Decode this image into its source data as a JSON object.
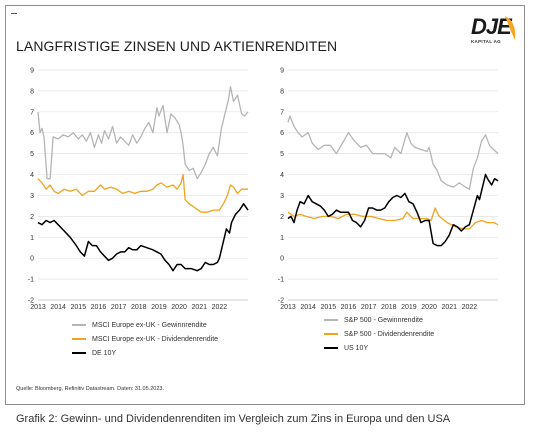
{
  "title": "LANGFRISTIGE ZINSEN UND AKTIENRENDITEN",
  "logo": {
    "name": "DJE",
    "sub": "KAPITAL AG",
    "accent": "#f5a623"
  },
  "source": "Quelle: Bloomberg, Refinitiv Datastream. Daten: 31.05.2023.",
  "caption": "Grafik 2: Gewinn- und Dividendenrenditen im Vergleich zum Zins in Europa und den USA",
  "colors": {
    "earnings": "#b5b5b5",
    "dividend": "#f0a321",
    "bond": "#000000",
    "grid": "#e3e3e3"
  },
  "chart_data": [
    {
      "type": "line",
      "ylim": [
        -2,
        9
      ],
      "yticks": [
        "-2",
        "-1",
        "0",
        "1",
        "2",
        "3",
        "4",
        "5",
        "6",
        "7",
        "8",
        "9"
      ],
      "xlim": [
        2013,
        2023.42
      ],
      "xticks": [
        "2013",
        "2014",
        "2015",
        "2016",
        "2017",
        "2018",
        "2019",
        "2020",
        "2021",
        "2022"
      ],
      "legend_position": "bottom",
      "series": [
        {
          "name": "MSCI Europe ex-UK - Gewinnrendite",
          "color": "#b5b5b5",
          "x": [
            2013.0,
            2013.1,
            2013.2,
            2013.3,
            2013.45,
            2013.6,
            2013.75,
            2014.0,
            2014.25,
            2014.5,
            2014.75,
            2015.0,
            2015.2,
            2015.4,
            2015.6,
            2015.8,
            2016.0,
            2016.15,
            2016.3,
            2016.5,
            2016.7,
            2016.9,
            2017.1,
            2017.3,
            2017.5,
            2017.7,
            2017.9,
            2018.1,
            2018.3,
            2018.5,
            2018.7,
            2018.9,
            2019.0,
            2019.2,
            2019.4,
            2019.6,
            2019.8,
            2020.0,
            2020.1,
            2020.2,
            2020.3,
            2020.5,
            2020.7,
            2020.9,
            2021.1,
            2021.3,
            2021.5,
            2021.7,
            2021.9,
            2022.1,
            2022.3,
            2022.45,
            2022.55,
            2022.7,
            2022.9,
            2023.1,
            2023.25,
            2023.42
          ],
          "y": [
            7.0,
            6.0,
            6.2,
            5.8,
            3.8,
            3.8,
            5.8,
            5.7,
            5.9,
            5.8,
            6.0,
            5.7,
            5.9,
            5.6,
            6.0,
            5.3,
            5.9,
            5.5,
            6.1,
            5.7,
            6.3,
            5.5,
            5.8,
            5.6,
            5.4,
            5.9,
            5.5,
            5.8,
            6.2,
            6.5,
            6.0,
            7.2,
            6.8,
            7.3,
            6.0,
            6.9,
            6.7,
            6.4,
            6.0,
            5.4,
            4.5,
            4.2,
            4.3,
            3.8,
            4.1,
            4.5,
            5.0,
            5.3,
            4.9,
            6.2,
            7.0,
            7.6,
            8.2,
            7.5,
            7.8,
            6.9,
            6.8,
            7.0
          ]
        },
        {
          "name": "MSCI Europe ex-UK - Dividendenrendite",
          "color": "#f0a321",
          "x": [
            2013.0,
            2013.2,
            2013.4,
            2013.6,
            2013.8,
            2014.0,
            2014.3,
            2014.6,
            2014.9,
            2015.2,
            2015.5,
            2015.8,
            2016.1,
            2016.3,
            2016.6,
            2016.9,
            2017.2,
            2017.5,
            2017.8,
            2018.1,
            2018.4,
            2018.7,
            2018.9,
            2019.1,
            2019.4,
            2019.7,
            2019.9,
            2020.1,
            2020.2,
            2020.3,
            2020.5,
            2020.8,
            2021.1,
            2021.4,
            2021.7,
            2022.0,
            2022.2,
            2022.4,
            2022.55,
            2022.7,
            2022.9,
            2023.1,
            2023.42
          ],
          "y": [
            3.8,
            3.6,
            3.3,
            3.5,
            3.2,
            3.1,
            3.3,
            3.2,
            3.3,
            3.0,
            3.2,
            3.2,
            3.5,
            3.3,
            3.4,
            3.3,
            3.1,
            3.2,
            3.1,
            3.2,
            3.2,
            3.3,
            3.5,
            3.6,
            3.4,
            3.5,
            3.3,
            3.6,
            4.0,
            2.8,
            2.6,
            2.4,
            2.2,
            2.2,
            2.3,
            2.3,
            2.6,
            3.0,
            3.5,
            3.4,
            3.1,
            3.3,
            3.3
          ]
        },
        {
          "name": "DE 10Y",
          "color": "#000000",
          "x": [
            2013.0,
            2013.2,
            2013.4,
            2013.6,
            2013.8,
            2014.0,
            2014.3,
            2014.6,
            2014.9,
            2015.1,
            2015.3,
            2015.5,
            2015.7,
            2015.9,
            2016.1,
            2016.3,
            2016.5,
            2016.7,
            2016.9,
            2017.1,
            2017.3,
            2017.5,
            2017.7,
            2017.9,
            2018.1,
            2018.4,
            2018.7,
            2018.9,
            2019.1,
            2019.3,
            2019.5,
            2019.7,
            2019.9,
            2020.1,
            2020.3,
            2020.6,
            2020.9,
            2021.1,
            2021.3,
            2021.5,
            2021.7,
            2021.9,
            2022.0,
            2022.2,
            2022.35,
            2022.5,
            2022.6,
            2022.8,
            2023.0,
            2023.2,
            2023.42
          ],
          "y": [
            1.7,
            1.6,
            1.8,
            1.7,
            1.8,
            1.6,
            1.3,
            1.0,
            0.6,
            0.3,
            0.1,
            0.8,
            0.6,
            0.6,
            0.3,
            0.1,
            -0.1,
            0.0,
            0.2,
            0.3,
            0.3,
            0.5,
            0.4,
            0.4,
            0.6,
            0.5,
            0.4,
            0.3,
            0.2,
            -0.1,
            -0.3,
            -0.6,
            -0.3,
            -0.3,
            -0.5,
            -0.5,
            -0.6,
            -0.5,
            -0.2,
            -0.3,
            -0.3,
            -0.2,
            0.0,
            0.8,
            1.4,
            1.2,
            1.7,
            2.1,
            2.3,
            2.6,
            2.3
          ]
        }
      ]
    },
    {
      "type": "line",
      "ylim": [
        -2,
        9
      ],
      "yticks": [
        "-2",
        "-1",
        "0",
        "1",
        "2",
        "3",
        "4",
        "5",
        "6",
        "7",
        "8",
        "9"
      ],
      "xlim": [
        2013,
        2023.42
      ],
      "xticks": [
        "2013",
        "2014",
        "2015",
        "2016",
        "2017",
        "2018",
        "2019",
        "2020",
        "2021",
        "2022"
      ],
      "legend_position": "bottom",
      "series": [
        {
          "name": "S&P 500 - Gewinnrendite",
          "color": "#b5b5b5",
          "x": [
            2013.0,
            2013.1,
            2013.3,
            2013.5,
            2013.7,
            2014.0,
            2014.2,
            2014.5,
            2014.8,
            2015.1,
            2015.4,
            2015.7,
            2016.0,
            2016.3,
            2016.6,
            2016.9,
            2017.2,
            2017.5,
            2017.8,
            2018.1,
            2018.3,
            2018.6,
            2018.9,
            2019.1,
            2019.3,
            2019.6,
            2019.9,
            2020.0,
            2020.2,
            2020.4,
            2020.6,
            2020.9,
            2021.2,
            2021.5,
            2021.8,
            2022.0,
            2022.2,
            2022.4,
            2022.6,
            2022.8,
            2023.0,
            2023.2,
            2023.42
          ],
          "y": [
            6.5,
            6.8,
            6.3,
            6.0,
            5.8,
            6.0,
            5.5,
            5.2,
            5.4,
            5.4,
            5.0,
            5.5,
            6.0,
            5.6,
            5.3,
            5.4,
            5.0,
            5.0,
            5.0,
            4.8,
            5.3,
            5.0,
            6.0,
            5.5,
            5.3,
            5.2,
            5.1,
            5.3,
            4.5,
            4.2,
            3.7,
            3.5,
            3.4,
            3.6,
            3.4,
            3.3,
            4.3,
            4.8,
            5.6,
            5.9,
            5.4,
            5.2,
            5.0
          ]
        },
        {
          "name": "S&P 500 - Dividendenrendite",
          "color": "#f0a321",
          "x": [
            2013.0,
            2013.3,
            2013.6,
            2013.9,
            2014.3,
            2014.7,
            2015.1,
            2015.5,
            2015.9,
            2016.3,
            2016.7,
            2017.1,
            2017.5,
            2017.9,
            2018.3,
            2018.7,
            2018.9,
            2019.2,
            2019.6,
            2019.9,
            2020.1,
            2020.3,
            2020.5,
            2020.9,
            2021.3,
            2021.7,
            2022.0,
            2022.3,
            2022.6,
            2022.9,
            2023.2,
            2023.42
          ],
          "y": [
            2.2,
            2.0,
            2.1,
            2.0,
            1.9,
            2.0,
            2.0,
            1.9,
            2.1,
            2.1,
            2.0,
            2.0,
            1.9,
            1.8,
            1.8,
            1.9,
            2.2,
            1.9,
            1.9,
            1.9,
            1.8,
            2.4,
            2.0,
            1.7,
            1.5,
            1.4,
            1.4,
            1.7,
            1.8,
            1.7,
            1.7,
            1.6
          ]
        },
        {
          "name": "US 10Y",
          "color": "#000000",
          "x": [
            2013.0,
            2013.15,
            2013.3,
            2013.45,
            2013.6,
            2013.8,
            2014.0,
            2014.2,
            2014.4,
            2014.6,
            2014.8,
            2015.0,
            2015.2,
            2015.4,
            2015.6,
            2015.8,
            2016.0,
            2016.2,
            2016.4,
            2016.6,
            2016.8,
            2017.0,
            2017.2,
            2017.4,
            2017.6,
            2017.8,
            2018.0,
            2018.2,
            2018.4,
            2018.6,
            2018.8,
            2019.0,
            2019.2,
            2019.4,
            2019.6,
            2019.8,
            2020.0,
            2020.2,
            2020.4,
            2020.6,
            2020.8,
            2021.0,
            2021.2,
            2021.4,
            2021.6,
            2021.8,
            2022.0,
            2022.2,
            2022.4,
            2022.5,
            2022.7,
            2022.8,
            2022.9,
            2023.1,
            2023.25,
            2023.42
          ],
          "y": [
            1.9,
            2.0,
            1.7,
            2.3,
            2.7,
            2.6,
            3.0,
            2.7,
            2.6,
            2.5,
            2.3,
            2.0,
            2.1,
            2.3,
            2.2,
            2.2,
            2.2,
            1.8,
            1.7,
            1.5,
            1.8,
            2.4,
            2.4,
            2.3,
            2.3,
            2.4,
            2.7,
            2.9,
            3.0,
            2.9,
            3.1,
            2.7,
            2.6,
            2.2,
            1.7,
            1.8,
            1.8,
            0.7,
            0.6,
            0.6,
            0.8,
            1.1,
            1.6,
            1.5,
            1.3,
            1.5,
            1.6,
            2.3,
            3.0,
            2.8,
            3.6,
            4.0,
            3.8,
            3.5,
            3.8,
            3.7
          ]
        }
      ]
    }
  ]
}
